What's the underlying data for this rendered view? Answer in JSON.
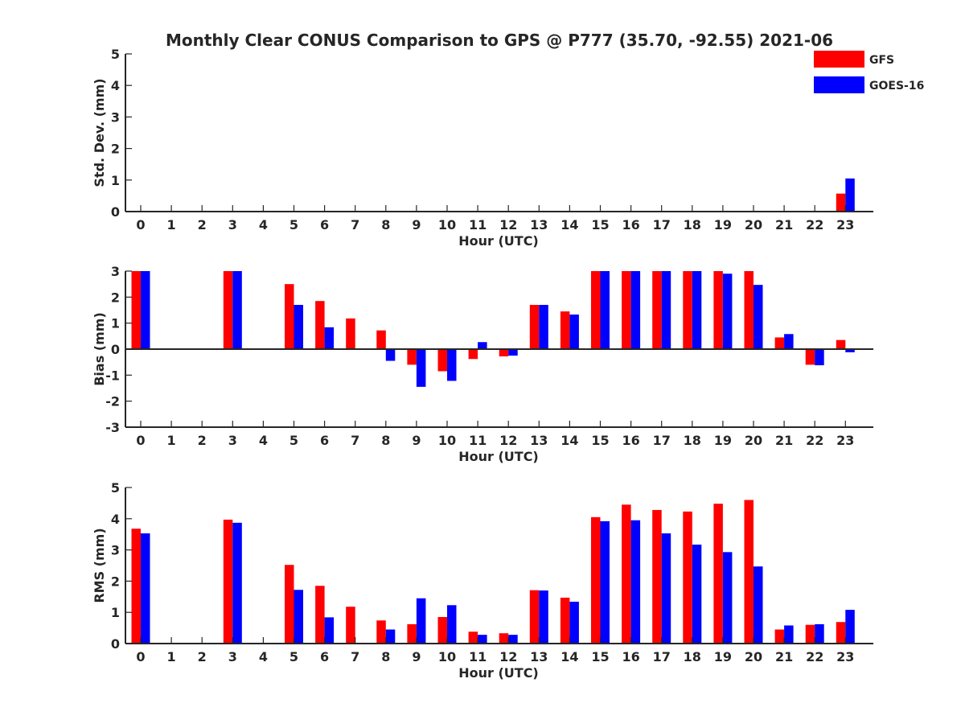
{
  "chart_data": [
    {
      "type": "bar",
      "title": "Monthly Clear CONUS Comparison to GPS @ P777 (35.70, -92.55) 2021-06",
      "xlabel": "Hour (UTC)",
      "ylabel": "Std. Dev. (mm)",
      "ylim": [
        0,
        5
      ],
      "yticks": [
        "0",
        "1",
        "2",
        "3",
        "4",
        "5"
      ],
      "categories": [
        "0",
        "1",
        "2",
        "3",
        "4",
        "5",
        "6",
        "7",
        "8",
        "9",
        "10",
        "11",
        "12",
        "13",
        "14",
        "15",
        "16",
        "17",
        "18",
        "19",
        "20",
        "21",
        "22",
        "23"
      ],
      "series": [
        {
          "name": "GFS",
          "color": "#ff0000",
          "values": [
            0,
            0,
            0,
            0,
            0,
            0,
            0,
            0,
            0,
            0,
            0,
            0,
            0,
            0,
            0,
            0,
            0,
            0,
            0,
            0,
            0,
            0,
            0,
            0.57
          ]
        },
        {
          "name": "GOES-16",
          "color": "#0000ff",
          "values": [
            0,
            0,
            0,
            0,
            0,
            0,
            0,
            0,
            0,
            0,
            0,
            0,
            0,
            0,
            0,
            0,
            0,
            0,
            0,
            0,
            0,
            0,
            0,
            1.05
          ]
        }
      ],
      "legend": "top-right",
      "grid": false
    },
    {
      "type": "bar",
      "xlabel": "Hour (UTC)",
      "ylabel": "Bias (mm)",
      "ylim": [
        -3,
        3
      ],
      "yticks": [
        "-3",
        "-2",
        "-1",
        "0",
        "1",
        "2",
        "3"
      ],
      "categories": [
        "0",
        "1",
        "2",
        "3",
        "4",
        "5",
        "6",
        "7",
        "8",
        "9",
        "10",
        "11",
        "12",
        "13",
        "14",
        "15",
        "16",
        "17",
        "18",
        "19",
        "20",
        "21",
        "22",
        "23"
      ],
      "series": [
        {
          "name": "GFS",
          "color": "#ff0000",
          "values": [
            3,
            0,
            0,
            3,
            0,
            2.5,
            1.85,
            1.18,
            0.72,
            -0.6,
            -0.85,
            -0.38,
            -0.28,
            1.7,
            1.45,
            3,
            3,
            3,
            3,
            3,
            3,
            0.45,
            -0.6,
            0.35
          ]
        },
        {
          "name": "GOES-16",
          "color": "#0000ff",
          "values": [
            3,
            0,
            0,
            3,
            0,
            1.7,
            0.84,
            0,
            -0.45,
            -1.45,
            -1.22,
            0.27,
            -0.25,
            1.7,
            1.33,
            3,
            3,
            3,
            3,
            2.9,
            2.47,
            0.58,
            -0.62,
            -0.12
          ]
        }
      ],
      "grid": false
    },
    {
      "type": "bar",
      "xlabel": "Hour (UTC)",
      "ylabel": "RMS (mm)",
      "ylim": [
        0,
        5
      ],
      "yticks": [
        "0",
        "1",
        "2",
        "3",
        "4",
        "5"
      ],
      "categories": [
        "0",
        "1",
        "2",
        "3",
        "4",
        "5",
        "6",
        "7",
        "8",
        "9",
        "10",
        "11",
        "12",
        "13",
        "14",
        "15",
        "16",
        "17",
        "18",
        "19",
        "20",
        "21",
        "22",
        "23"
      ],
      "series": [
        {
          "name": "GFS",
          "color": "#ff0000",
          "values": [
            3.68,
            0,
            0,
            3.97,
            0,
            2.52,
            1.85,
            1.18,
            0.74,
            0.62,
            0.85,
            0.38,
            0.33,
            1.71,
            1.47,
            4.05,
            4.45,
            4.28,
            4.23,
            4.48,
            4.6,
            0.45,
            0.6,
            0.69
          ]
        },
        {
          "name": "GOES-16",
          "color": "#0000ff",
          "values": [
            3.53,
            0,
            0,
            3.87,
            0,
            1.72,
            0.84,
            0,
            0.45,
            1.45,
            1.23,
            0.28,
            0.28,
            1.7,
            1.34,
            3.92,
            3.95,
            3.53,
            3.17,
            2.93,
            2.47,
            0.58,
            0.62,
            1.08
          ]
        }
      ],
      "grid": false
    }
  ]
}
